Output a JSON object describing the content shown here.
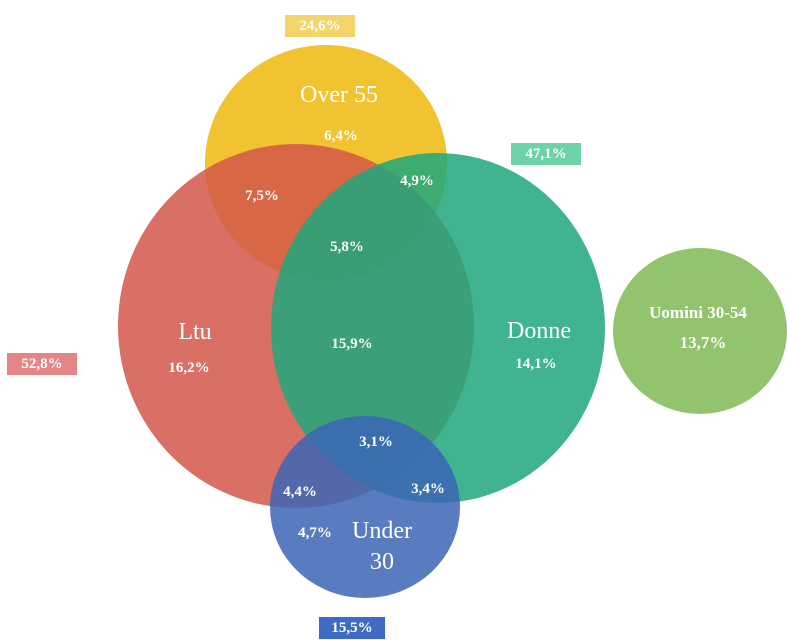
{
  "sets": {
    "over55": {
      "label": "Over 55",
      "total": "24,6%",
      "color": "#F0BE1E"
    },
    "donne": {
      "label": "Donne",
      "total": "47,1%",
      "color": "#2DB08A"
    },
    "ltu": {
      "label": "Ltu",
      "total": "52,8%",
      "color": "#D96A5E"
    },
    "under30": {
      "label_line1": "Under",
      "label_line2": "30",
      "total": "15,5%",
      "color": "#4E74BC"
    },
    "uomini": {
      "label": "Uomini 30-54",
      "value": "13,7%",
      "color": "#92C46E"
    }
  },
  "regions": {
    "over55_only": "6,4%",
    "ltu_over55": "7,5%",
    "donne_over55": "4,9%",
    "ltu_donne_over55": "5,8%",
    "ltu_only": "16,2%",
    "ltu_donne": "15,9%",
    "donne_only": "14,1%",
    "ltu_donne_under30": "3,1%",
    "ltu_under30": "4,4%",
    "donne_under30": "3,4%",
    "under30_only": "4,7%"
  },
  "tag_colors": {
    "over55": "#F5D46A",
    "donne": "#6DD2A8",
    "ltu": "#E58585",
    "under30": "#3F6BC4"
  }
}
